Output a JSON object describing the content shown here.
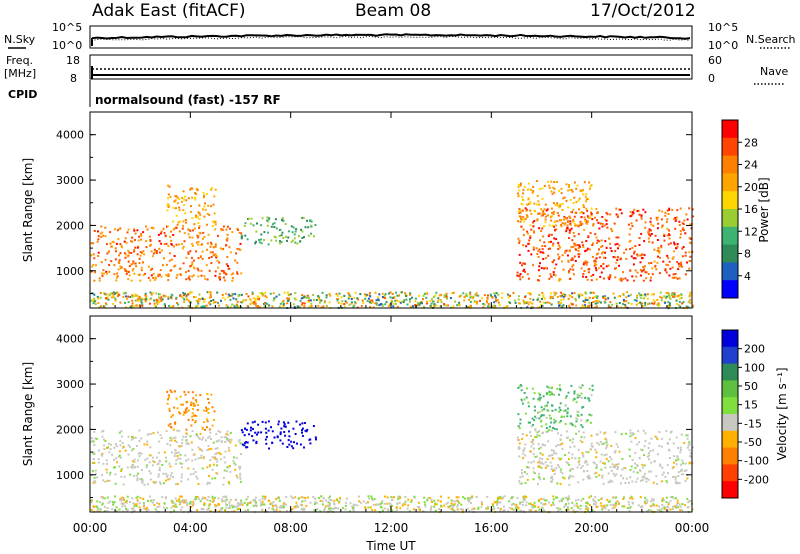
{
  "header": {
    "station": "Adak East (fitACF)",
    "beam": "Beam 08",
    "date": "17/Oct/2012"
  },
  "nsky_panel": {
    "left_label": "N.Sky",
    "right_label": "N.Search",
    "ticks_left": [
      "10^5",
      "10^0"
    ],
    "ticks_right": [
      "10^5",
      "10^0"
    ]
  },
  "freq_panel": {
    "left_label_1": "Freq.",
    "left_label_2": "[MHz]",
    "right_label": "Nave",
    "ticks_left": [
      "18",
      "8"
    ],
    "ticks_right": [
      "60",
      "0"
    ]
  },
  "cpid": {
    "label": "CPID",
    "value": "normalsound (fast) -157 RF"
  },
  "x_axis": {
    "label": "Time UT",
    "ticks": [
      "00:00",
      "04:00",
      "08:00",
      "12:00",
      "16:00",
      "20:00",
      "00:00"
    ]
  },
  "power_panel": {
    "ylabel": "Slant Range [km]",
    "yticks": [
      "1000",
      "2000",
      "3000",
      "4000"
    ],
    "colorbar_label": "Power [dB]",
    "colorbar_ticks": [
      "4",
      "8",
      "12",
      "16",
      "20",
      "24",
      "28"
    ],
    "colorbar_colors": [
      "#0000ff",
      "#1f5fbf",
      "#2e8b57",
      "#3cb371",
      "#9acd32",
      "#ffd700",
      "#ffa500",
      "#ff7f00",
      "#ff4500",
      "#ff0000"
    ]
  },
  "velocity_panel": {
    "ylabel": "Slant Range [km]",
    "yticks": [
      "1000",
      "2000",
      "3000",
      "4000"
    ],
    "colorbar_label": "Velocity [m s⁻¹]",
    "colorbar_ticks": [
      "200",
      "100",
      "50",
      "15",
      "-15",
      "-50",
      "-100",
      "-200"
    ],
    "colorbar_colors": [
      "#0000dd",
      "#1f3fcc",
      "#2e8b57",
      "#5fbf3f",
      "#7fdf3f",
      "#c8c8c0",
      "#ffb000",
      "#ff8000",
      "#ff4000",
      "#ff0000"
    ]
  },
  "chart_data": [
    {
      "type": "heatmap",
      "title": "Power",
      "xlabel": "Time UT",
      "ylabel": "Slant Range [km]",
      "xlim": [
        "00:00",
        "24:00"
      ],
      "ylim": [
        180,
        4500
      ],
      "colorbar": {
        "label": "Power [dB]",
        "range": [
          0,
          30
        ]
      },
      "regions": [
        {
          "t_start": "00:00",
          "t_end": "06:00",
          "range_km": [
            800,
            2000
          ],
          "power_db": 24
        },
        {
          "t_start": "03:00",
          "t_end": "05:00",
          "range_km": [
            2000,
            2900
          ],
          "power_db": 20
        },
        {
          "t_start": "06:00",
          "t_end": "09:00",
          "range_km": [
            1600,
            2200
          ],
          "power_db": 10
        },
        {
          "t_start": "17:00",
          "t_end": "24:00",
          "range_km": [
            800,
            2400
          ],
          "power_db": 26
        },
        {
          "t_start": "17:00",
          "t_end": "20:00",
          "range_km": [
            2000,
            3000
          ],
          "power_db": 20
        }
      ]
    },
    {
      "type": "heatmap",
      "title": "Velocity",
      "xlabel": "Time UT",
      "ylabel": "Slant Range [km]",
      "xlim": [
        "00:00",
        "24:00"
      ],
      "ylim": [
        180,
        4500
      ],
      "colorbar": {
        "label": "Velocity [m s⁻¹]",
        "range": [
          -200,
          200
        ]
      },
      "regions": [
        {
          "t_start": "00:00",
          "t_end": "06:00",
          "range_km": [
            800,
            2000
          ],
          "velocity_ms": 0
        },
        {
          "t_start": "03:00",
          "t_end": "05:00",
          "range_km": [
            2000,
            2900
          ],
          "velocity_ms": -50
        },
        {
          "t_start": "06:00",
          "t_end": "09:00",
          "range_km": [
            1600,
            2200
          ],
          "velocity_ms": 150
        },
        {
          "t_start": "17:00",
          "t_end": "24:00",
          "range_km": [
            800,
            2000
          ],
          "velocity_ms": 0
        },
        {
          "t_start": "17:00",
          "t_end": "20:00",
          "range_km": [
            2000,
            3000
          ],
          "velocity_ms": 30
        }
      ]
    }
  ]
}
